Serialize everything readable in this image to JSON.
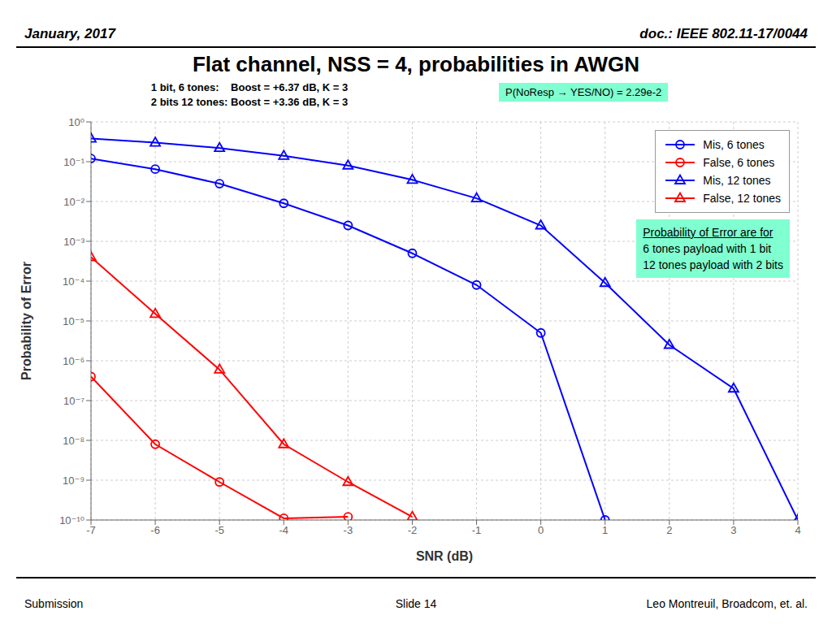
{
  "chart_data": {
    "type": "line",
    "title": "Flat channel, NSS = 4, probabilities in AWGN",
    "subtitle": [
      "1 bit, 6 tones:    Boost = +6.37 dB, K = 3",
      "2 bits 12 tones: Boost = +3.36 dB, K = 3"
    ],
    "header": [
      "January, 2017",
      "doc.: IEEE 802.11-17/0044"
    ],
    "footer": [
      "Submission",
      "Slide 14",
      "Leo Montreuil, Broadcom, et. al."
    ],
    "annotations": [
      {
        "text": [
          "P(NoResp → YES/NO) = 2.29e-2"
        ],
        "color": "#80FFD0"
      },
      {
        "text": [
          "Probability of Error are for",
          "6 tones payload with 1 bit",
          "12 tones payload with 2 bits"
        ],
        "color": "#80FFD0"
      }
    ],
    "xlabel": "SNR (dB)",
    "ylabel": "Probability of Error",
    "xlim": [
      -7,
      4
    ],
    "xticks": [
      -7,
      -6,
      -5,
      -4,
      -3,
      -2,
      -1,
      0,
      1,
      2,
      3,
      4
    ],
    "ylim": [
      1e-10,
      1
    ],
    "yticks": [
      {
        "value": 1e-10,
        "label": "10⁻¹⁰"
      },
      {
        "value": 1e-09,
        "label": "10⁻⁹"
      },
      {
        "value": 1e-08,
        "label": "10⁻⁸"
      },
      {
        "value": 1e-07,
        "label": "10⁻⁷"
      },
      {
        "value": 1e-06,
        "label": "10⁻⁶"
      },
      {
        "value": 1e-05,
        "label": "10⁻⁵"
      },
      {
        "value": 0.0001,
        "label": "10⁻⁴"
      },
      {
        "value": 0.001,
        "label": "10⁻³"
      },
      {
        "value": 0.01,
        "label": "10⁻²"
      },
      {
        "value": 0.1,
        "label": "10⁻¹"
      },
      {
        "value": 1,
        "label": "10⁰"
      }
    ],
    "log": "y",
    "grid": true,
    "legend": "upper right",
    "series": [
      {
        "name": "Mis, 6 tones",
        "color": "#0000FF",
        "marker": "circle",
        "x": [
          -7,
          -6,
          -5,
          -4,
          -3,
          -2,
          -1,
          0,
          1
        ],
        "values": [
          0.12,
          0.065,
          0.028,
          0.009,
          0.0025,
          0.0005,
          8e-05,
          5e-06,
          1e-10
        ]
      },
      {
        "name": "False, 6 tones",
        "color": "#FF0000",
        "marker": "circle",
        "x": [
          -7,
          -6,
          -5,
          -4,
          -3
        ],
        "values": [
          4e-07,
          8e-09,
          9e-10,
          1.1e-10,
          1.2e-10
        ]
      },
      {
        "name": "Mis, 12 tones",
        "color": "#0000FF",
        "marker": "triangle",
        "x": [
          -7,
          -6,
          -5,
          -4,
          -3,
          -2,
          -1,
          0,
          1,
          2,
          3,
          4
        ],
        "values": [
          0.38,
          0.3,
          0.22,
          0.14,
          0.08,
          0.035,
          0.012,
          0.0025,
          9e-05,
          2.5e-06,
          2e-07,
          1e-10
        ]
      },
      {
        "name": "False, 12 tones",
        "color": "#FF0000",
        "marker": "triangle",
        "x": [
          -7,
          -6,
          -5,
          -4,
          -3,
          -2
        ],
        "values": [
          0.0004,
          1.5e-05,
          6e-07,
          8e-09,
          9e-10,
          1.2e-10
        ]
      }
    ]
  }
}
